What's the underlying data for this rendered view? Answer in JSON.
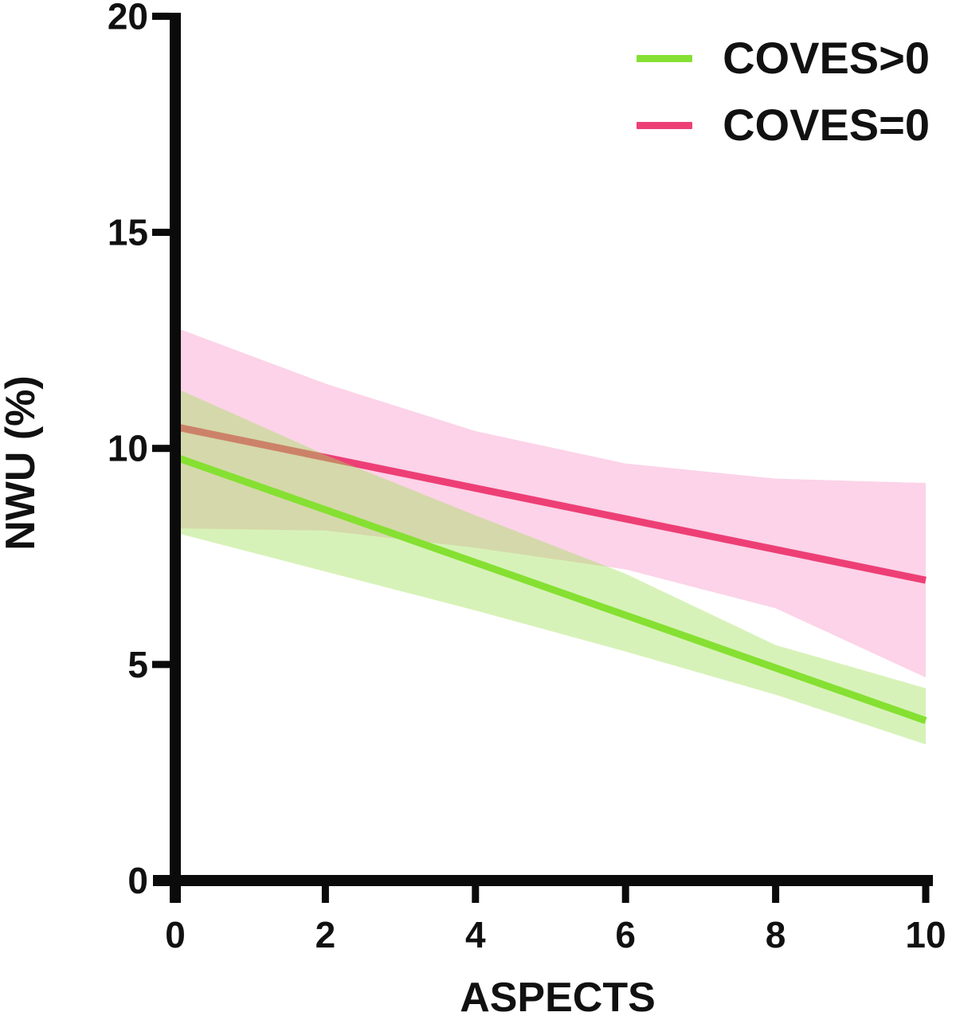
{
  "figure": {
    "background": "#ffffff",
    "text_color": "#111111",
    "axis_color": "#0b0b0b"
  },
  "chart_data": {
    "type": "line",
    "title": "",
    "xlabel": "ASPECTS",
    "ylabel": "NWU (%)",
    "xlim": [
      0,
      10
    ],
    "ylim": [
      0,
      20
    ],
    "x_ticks": [
      0,
      2,
      4,
      6,
      8,
      10
    ],
    "y_ticks": [
      0,
      5,
      10,
      15,
      20
    ],
    "grid": false,
    "legend_position": "top-right",
    "series": [
      {
        "name": "COVES>0",
        "color": "#85E032",
        "band_color": "rgba(160,224,85,0.42)",
        "x": [
          0,
          10
        ],
        "y": [
          9.8,
          3.7
        ],
        "band": {
          "x": [
            0,
            2,
            4,
            6,
            8,
            10
          ],
          "upper": [
            11.4,
            9.85,
            8.45,
            7.1,
            5.45,
            4.45
          ],
          "lower": [
            8.05,
            7.15,
            6.25,
            5.3,
            4.3,
            3.15
          ]
        }
      },
      {
        "name": "COVES=0",
        "color": "#ED3F76",
        "band_color": "rgba(243,70,160,0.24)",
        "x": [
          0,
          10
        ],
        "y": [
          10.5,
          6.95
        ],
        "band": {
          "x": [
            0,
            2,
            4,
            6,
            8,
            10
          ],
          "upper": [
            12.8,
            11.5,
            10.4,
            9.65,
            9.3,
            9.2
          ],
          "lower": [
            8.15,
            8.1,
            7.7,
            7.2,
            6.3,
            4.7
          ]
        }
      }
    ]
  },
  "legend": {
    "items": [
      {
        "label": "COVES>0",
        "color": "#85E032"
      },
      {
        "label": "COVES=0",
        "color": "#ED3F76"
      }
    ]
  }
}
